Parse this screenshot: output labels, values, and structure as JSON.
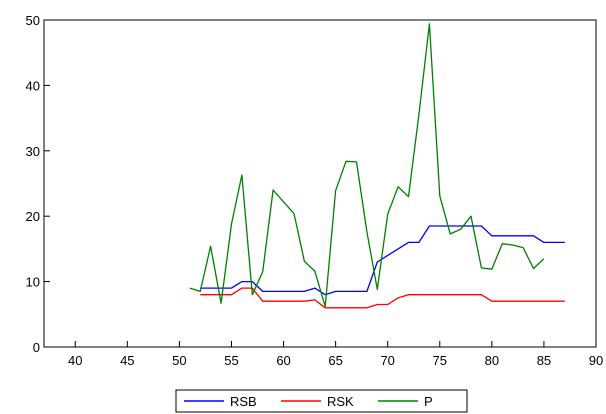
{
  "chart_data": {
    "type": "line",
    "title": "",
    "xlabel": "",
    "ylabel": "",
    "xlim": [
      37,
      90
    ],
    "ylim": [
      0,
      50
    ],
    "xticks": [
      40,
      45,
      50,
      55,
      60,
      65,
      70,
      75,
      80,
      85,
      90
    ],
    "yticks": [
      0,
      10,
      20,
      30,
      40,
      50
    ],
    "grid": false,
    "legend_position": "bottom-center",
    "series": [
      {
        "name": "RSB",
        "color": "#0000ff",
        "x": [
          52,
          53,
          54,
          55,
          56,
          57,
          58,
          59,
          60,
          61,
          62,
          63,
          64,
          65,
          66,
          67,
          68,
          69,
          70,
          71,
          72,
          73,
          74,
          75,
          76,
          77,
          78,
          79,
          80,
          81,
          82,
          83,
          84,
          85,
          86,
          87
        ],
        "y": [
          9,
          9,
          9,
          9,
          10,
          10,
          8.5,
          8.5,
          8.5,
          8.5,
          8.5,
          9,
          8,
          8.5,
          8.5,
          8.5,
          8.5,
          13,
          14,
          15,
          16,
          16,
          18.5,
          18.5,
          18.5,
          18.5,
          18.5,
          18.5,
          17,
          17,
          17,
          17,
          17,
          16,
          16,
          16
        ]
      },
      {
        "name": "RSK",
        "color": "#ff0000",
        "x": [
          52,
          53,
          54,
          55,
          56,
          57,
          58,
          59,
          60,
          61,
          62,
          63,
          64,
          65,
          66,
          67,
          68,
          69,
          70,
          71,
          72,
          73,
          74,
          75,
          76,
          77,
          78,
          79,
          80,
          81,
          82,
          83,
          84,
          85,
          86,
          87
        ],
        "y": [
          8,
          8,
          8,
          8,
          9,
          9,
          7,
          7,
          7,
          7,
          7,
          7.2,
          6,
          6,
          6,
          6,
          6,
          6.5,
          6.5,
          7.5,
          8,
          8,
          8,
          8,
          8,
          8,
          8,
          8,
          7,
          7,
          7,
          7,
          7,
          7,
          7,
          7
        ]
      },
      {
        "name": "P",
        "color": "#008000",
        "x": [
          51,
          52,
          53,
          54,
          55,
          56,
          57,
          58,
          59,
          60,
          61,
          62,
          63,
          64,
          65,
          66,
          67,
          68,
          69,
          70,
          71,
          72,
          73,
          74,
          75,
          76,
          77,
          78,
          79,
          80,
          81,
          82,
          83,
          84,
          85
        ],
        "y": [
          9,
          8.5,
          15.4,
          6.7,
          18.8,
          26.3,
          8,
          11.5,
          24,
          22.2,
          20.4,
          13.1,
          11.6,
          6.2,
          23.9,
          28.4,
          28.3,
          17.6,
          8.8,
          20.3,
          24.5,
          23,
          35.5,
          49.4,
          23.1,
          17.3,
          18,
          20,
          12.1,
          11.9,
          15.8,
          15.6,
          15.2,
          12,
          13.5
        ]
      }
    ]
  }
}
